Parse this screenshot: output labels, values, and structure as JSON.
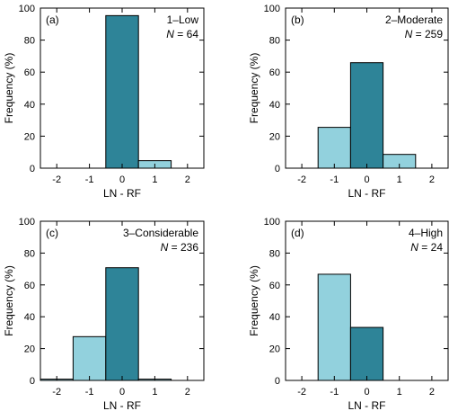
{
  "colors": {
    "dark": "#2e8498",
    "light": "#92d1dd",
    "axis": "#000000"
  },
  "chart_data": [
    {
      "type": "bar",
      "panel_label": "(a)",
      "category_label": "1–Low",
      "n_prefix": "N",
      "n_value": "= 64",
      "xlabel": "LN - RF",
      "ylabel": "Frequency (%)",
      "x": [
        -2,
        -1,
        0,
        1
      ],
      "values": [
        0,
        0,
        95.3,
        4.7
      ],
      "xticks": [
        "-2",
        "-1",
        "0",
        "1",
        "2"
      ],
      "yticks": [
        "0",
        "20",
        "40",
        "60",
        "80",
        "100"
      ],
      "xlim": [
        -2.5,
        2.5
      ],
      "ylim": [
        0,
        100
      ]
    },
    {
      "type": "bar",
      "panel_label": "(b)",
      "category_label": "2–Moderate",
      "n_prefix": "N",
      "n_value": "= 259",
      "xlabel": "LN - RF",
      "ylabel": "Frequency (%)",
      "x": [
        -2,
        -1,
        0,
        1
      ],
      "values": [
        0,
        25.5,
        65.9,
        8.6
      ],
      "xticks": [
        "-2",
        "-1",
        "0",
        "1",
        "2"
      ],
      "yticks": [
        "0",
        "20",
        "40",
        "60",
        "80",
        "100"
      ],
      "xlim": [
        -2.5,
        2.5
      ],
      "ylim": [
        0,
        100
      ]
    },
    {
      "type": "bar",
      "panel_label": "(c)",
      "category_label": "3–Considerable",
      "n_prefix": "N",
      "n_value": "= 236",
      "xlabel": "LN - RF",
      "ylabel": "Frequency (%)",
      "x": [
        -2,
        -1,
        0,
        1
      ],
      "values": [
        0.8,
        27.5,
        70.8,
        0.8
      ],
      "xticks": [
        "-2",
        "-1",
        "0",
        "1",
        "2"
      ],
      "yticks": [
        "0",
        "20",
        "40",
        "60",
        "80",
        "100"
      ],
      "xlim": [
        -2.5,
        2.5
      ],
      "ylim": [
        0,
        100
      ]
    },
    {
      "type": "bar",
      "panel_label": "(d)",
      "category_label": "4–High",
      "n_prefix": "N",
      "n_value": "= 24",
      "xlabel": "LN - RF",
      "ylabel": "Frequency (%)",
      "x": [
        -2,
        -1,
        0,
        1
      ],
      "values": [
        0,
        66.7,
        33.3,
        0
      ],
      "xticks": [
        "-2",
        "-1",
        "0",
        "1",
        "2"
      ],
      "yticks": [
        "0",
        "20",
        "40",
        "60",
        "80",
        "100"
      ],
      "xlim": [
        -2.5,
        2.5
      ],
      "ylim": [
        0,
        100
      ]
    }
  ]
}
